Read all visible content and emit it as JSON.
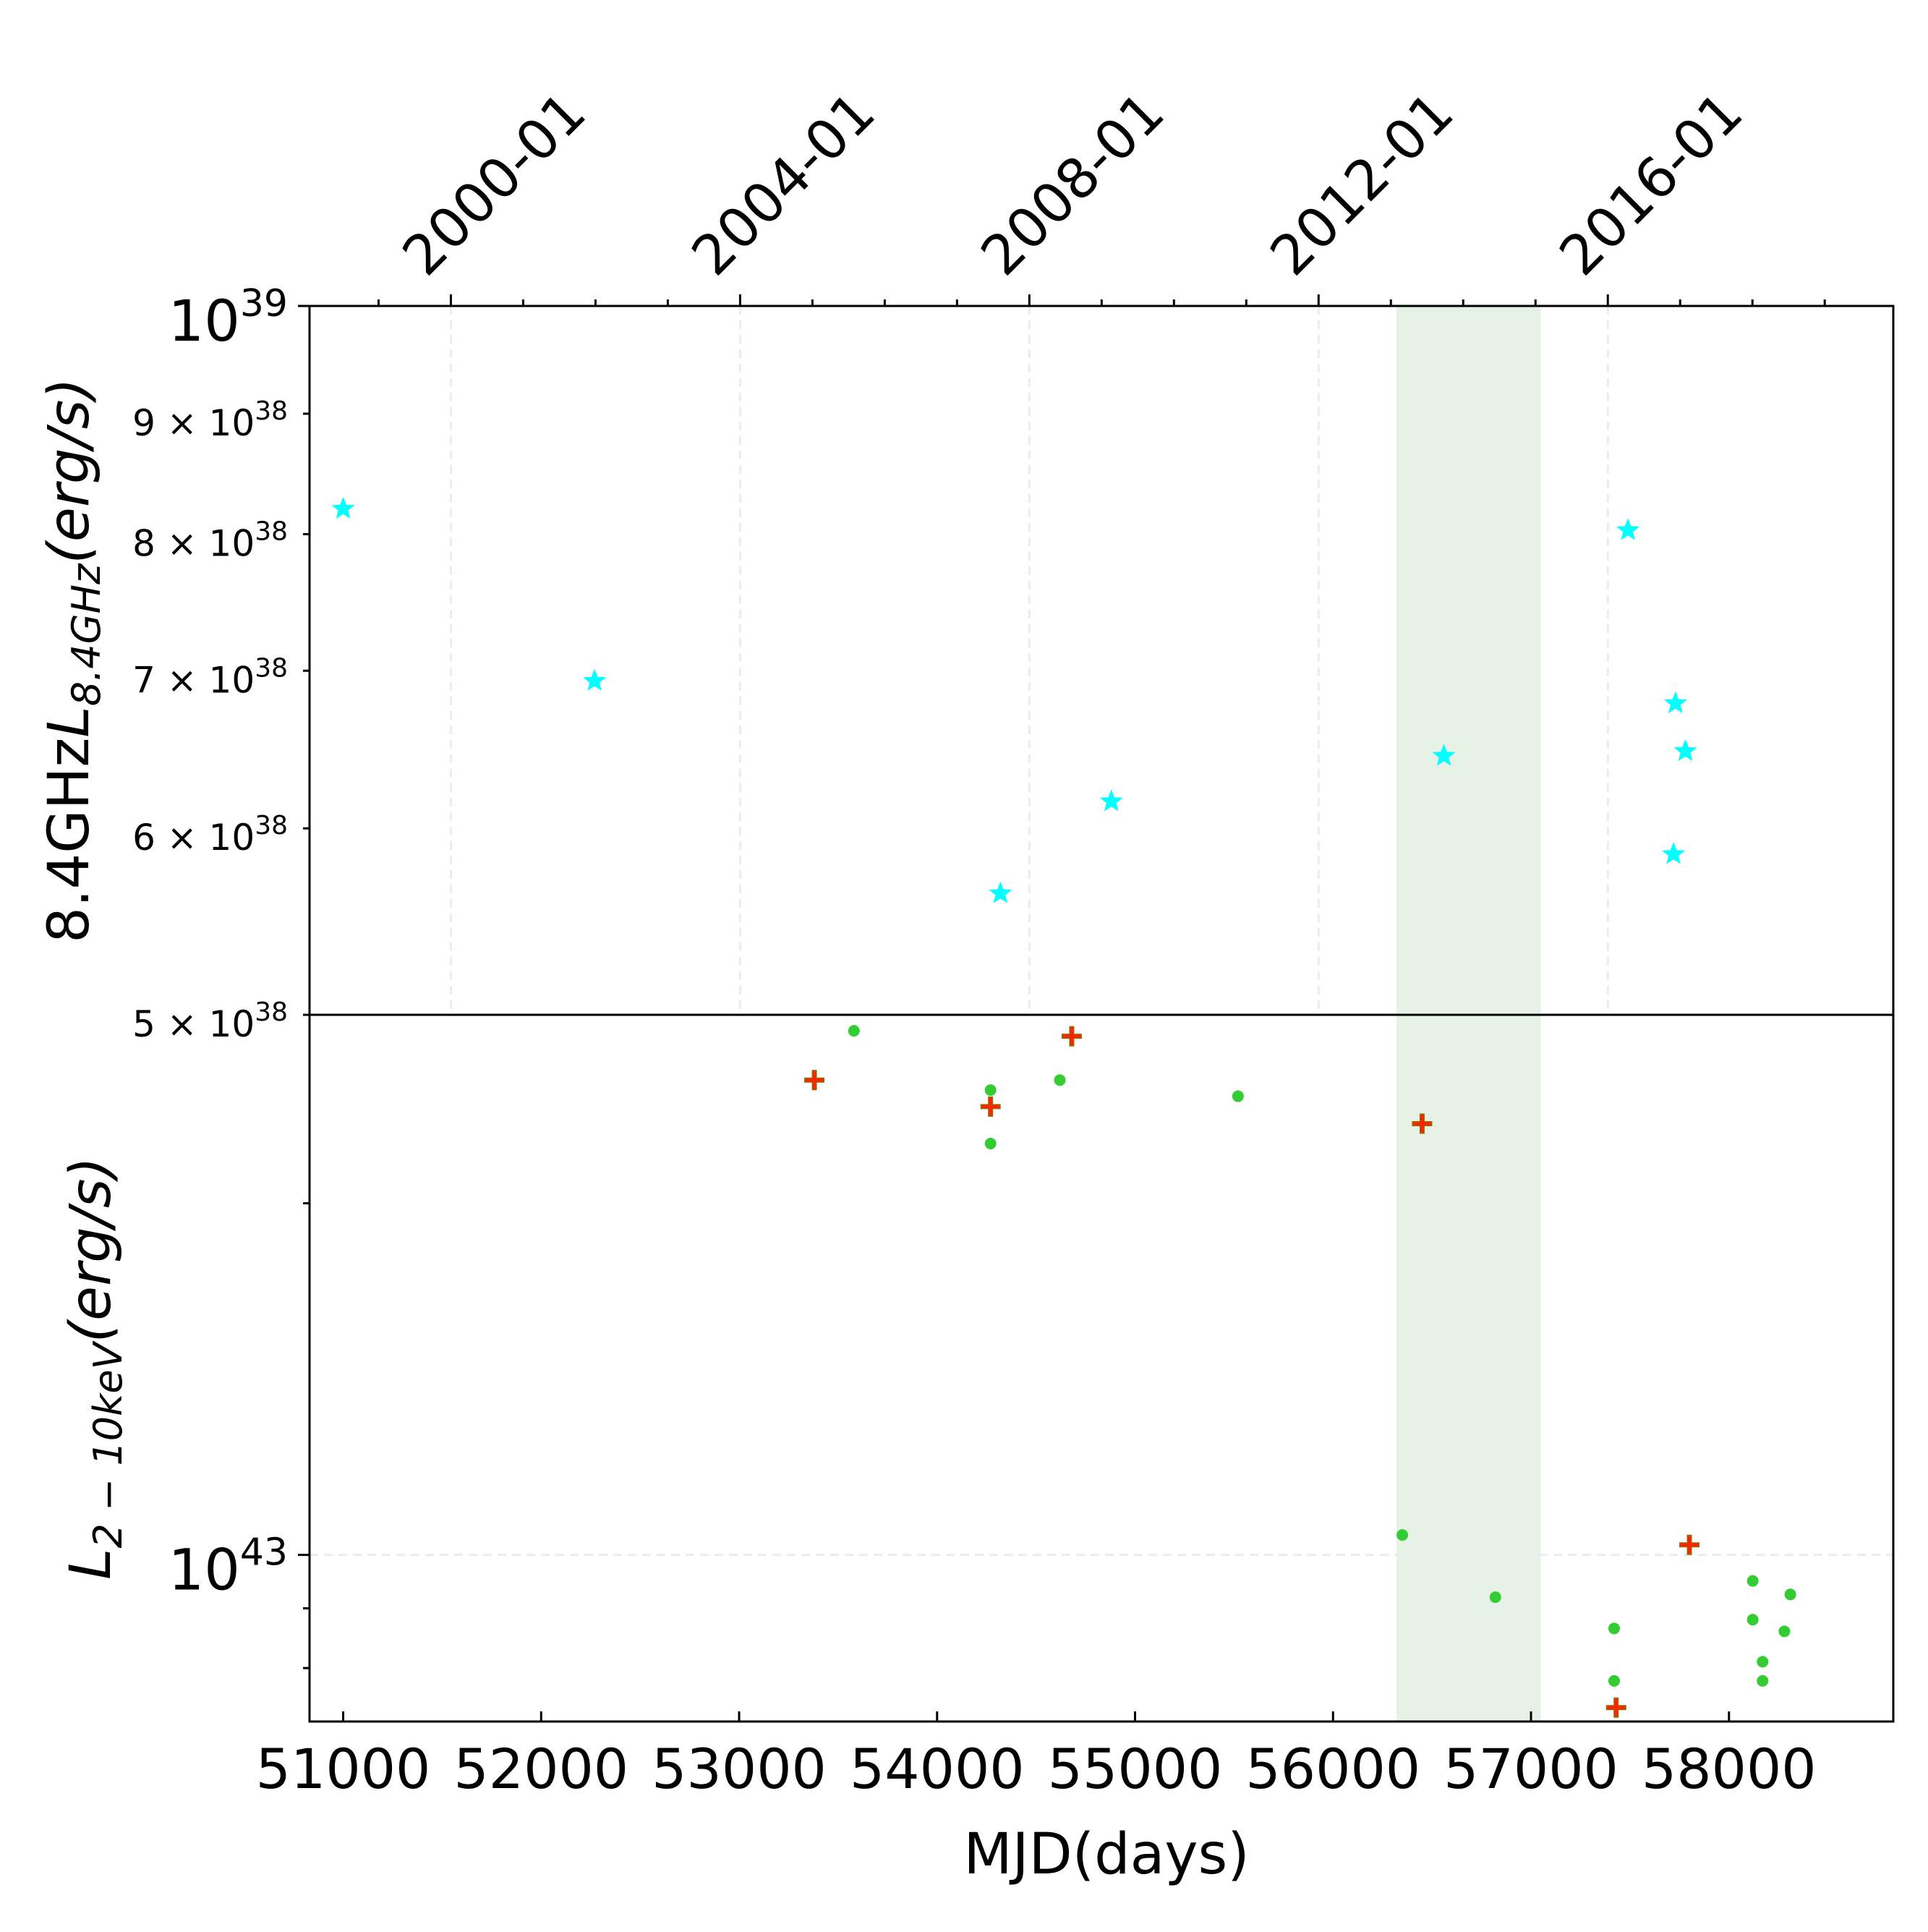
{
  "chart_data": {
    "type": "scatter",
    "xlabel": "MJD(days)",
    "x_ticks": [
      {
        "value": 51000,
        "label": "51000"
      },
      {
        "value": 52000,
        "label": "52000"
      },
      {
        "value": 53000,
        "label": "53000"
      },
      {
        "value": 54000,
        "label": "54000"
      },
      {
        "value": 55000,
        "label": "55000"
      },
      {
        "value": 56000,
        "label": "56000"
      },
      {
        "value": 57000,
        "label": "57000"
      },
      {
        "value": 58000,
        "label": "58000"
      }
    ],
    "xlim": [
      50830,
      58830
    ],
    "top_axis_ticks": [
      {
        "value": 51544,
        "label": "2000-01"
      },
      {
        "value": 53005,
        "label": "2004-01"
      },
      {
        "value": 54466,
        "label": "2008-01"
      },
      {
        "value": 55927,
        "label": "2012-01"
      },
      {
        "value": 57388,
        "label": "2016-01"
      }
    ],
    "shaded_region": {
      "x0": 56320,
      "x1": 57050,
      "color": "#e6f2e6"
    },
    "panels": [
      {
        "ylabel": "8.4GHz$L_{8.4GHz}(erg/s)$",
        "ylabel_plain": "8.4GHz",
        "ylabel_math": "L",
        "ylabel_sub": "8.4GHz",
        "ylabel_tail": "(erg/s)",
        "yscale": "log",
        "ylim": [
          5e+38,
          1e+39
        ],
        "y_ticks": [
          {
            "value": 1e+39,
            "base": "10",
            "exp": "39",
            "major": true
          },
          {
            "value": 9e+38,
            "mant": "9 × 10",
            "exp": "38",
            "major": false
          },
          {
            "value": 8e+38,
            "mant": "8 × 10",
            "exp": "38",
            "major": false
          },
          {
            "value": 7e+38,
            "mant": "7 × 10",
            "exp": "38",
            "major": false
          },
          {
            "value": 6e+38,
            "mant": "6 × 10",
            "exp": "38",
            "major": false
          },
          {
            "value": 5e+38,
            "mant": "5 × 10",
            "exp": "38",
            "major": false
          }
        ],
        "series": [
          {
            "marker": "star",
            "color": "#00ffff",
            "points": [
              {
                "x": 51000,
                "y": 8.2e+38
              },
              {
                "x": 52270,
                "y": 6.93e+38
              },
              {
                "x": 54320,
                "y": 5.63e+38
              },
              {
                "x": 54880,
                "y": 6.16e+38
              },
              {
                "x": 56560,
                "y": 6.44e+38
              },
              {
                "x": 57490,
                "y": 8.03e+38
              },
              {
                "x": 57720,
                "y": 5.85e+38
              },
              {
                "x": 57730,
                "y": 6.78e+38
              },
              {
                "x": 57780,
                "y": 6.47e+38
              }
            ]
          }
        ]
      },
      {
        "ylabel": "$L_{2-10keV}(erg/s)$",
        "ylabel_math": "L",
        "ylabel_sub": "2 − 10keV",
        "ylabel_tail": "(erg/s)",
        "yscale": "log",
        "ylim": [
          7.2e+42,
          2.9e+43
        ],
        "y_ticks": [
          {
            "value": 1e+43,
            "base": "10",
            "exp": "43",
            "major": true
          }
        ],
        "series": [
          {
            "marker": "circle",
            "color": "#33cc33",
            "points": [
              {
                "x": 53580,
                "y": 2.81e+43
              },
              {
                "x": 54270,
                "y": 2.5e+43
              },
              {
                "x": 54270,
                "y": 2.25e+43
              },
              {
                "x": 54620,
                "y": 2.55e+43
              },
              {
                "x": 55520,
                "y": 2.47e+43
              },
              {
                "x": 56350,
                "y": 1.04e+43
              },
              {
                "x": 56820,
                "y": 9.2e+42
              },
              {
                "x": 57420,
                "y": 8.65e+42
              },
              {
                "x": 57420,
                "y": 7.8e+42
              },
              {
                "x": 58120,
                "y": 9.5e+42
              },
              {
                "x": 58120,
                "y": 8.8e+42
              },
              {
                "x": 58170,
                "y": 8.1e+42
              },
              {
                "x": 58170,
                "y": 7.8e+42
              },
              {
                "x": 58280,
                "y": 8.6e+42
              },
              {
                "x": 58310,
                "y": 9.25e+42
              }
            ]
          },
          {
            "marker": "plus",
            "color": "#ff2200",
            "edge_color": "#996600",
            "points": [
              {
                "x": 53380,
                "y": 2.55e+43
              },
              {
                "x": 54270,
                "y": 2.42e+43
              },
              {
                "x": 54680,
                "y": 2.78e+43
              },
              {
                "x": 56450,
                "y": 2.34e+43
              },
              {
                "x": 57430,
                "y": 7.4e+42
              },
              {
                "x": 57800,
                "y": 1.02e+43
              }
            ]
          }
        ]
      }
    ]
  }
}
